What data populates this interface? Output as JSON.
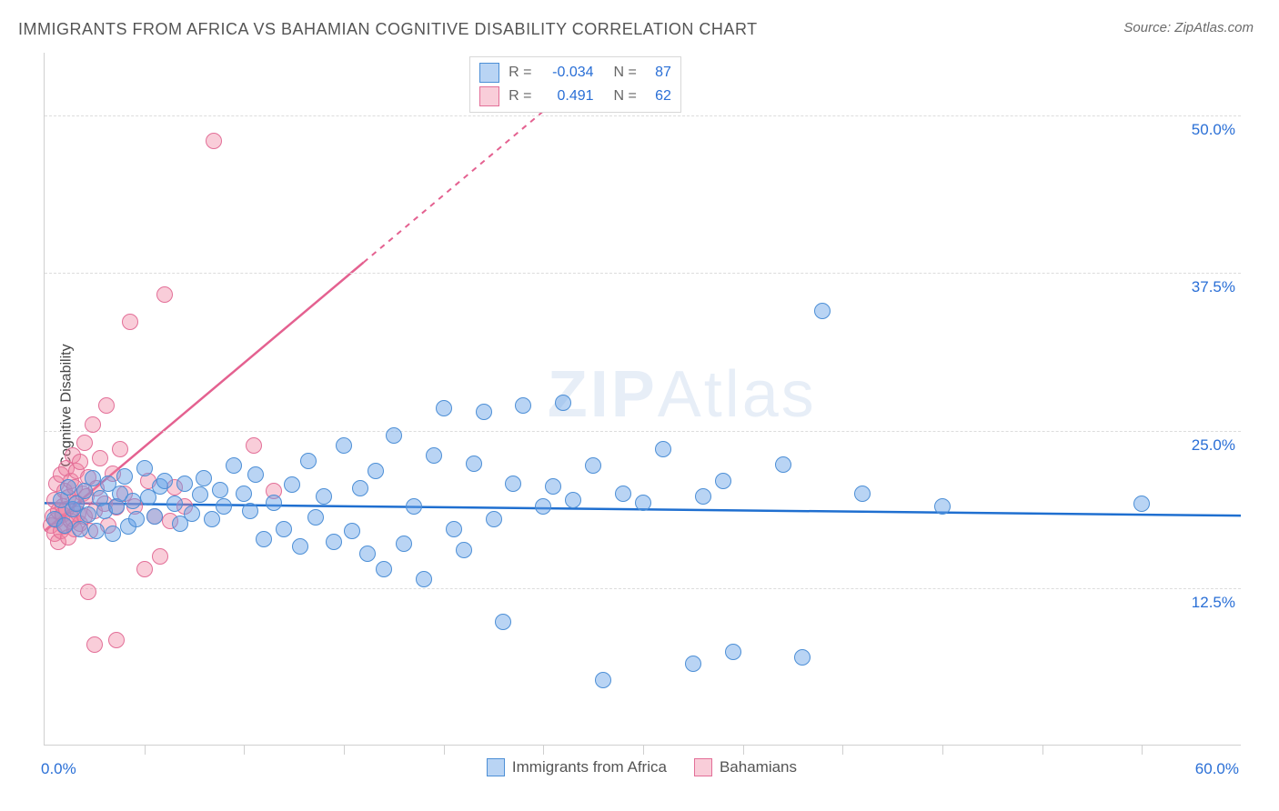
{
  "title": "IMMIGRANTS FROM AFRICA VS BAHAMIAN COGNITIVE DISABILITY CORRELATION CHART",
  "source_prefix": "Source: ",
  "source_name": "ZipAtlas.com",
  "ylabel": "Cognitive Disability",
  "watermark_bold": "ZIP",
  "watermark_rest": "Atlas",
  "colors": {
    "series_a_fill": "rgba(100,160,230,0.45)",
    "series_a_stroke": "#4d8fd6",
    "series_a_line": "#1f6fd0",
    "series_b_fill": "rgba(240,130,160,0.40)",
    "series_b_stroke": "#e36f98",
    "series_b_line": "#e46190",
    "axis_label": "#2a6fd6",
    "grid": "#dcdcdc",
    "text": "#555555",
    "watermark": "rgba(120,160,210,0.18)"
  },
  "chart": {
    "type": "scatter",
    "xlim": [
      0,
      60
    ],
    "ylim": [
      0,
      55
    ],
    "yticks": [
      {
        "v": 12.5,
        "label": "12.5%"
      },
      {
        "v": 25.0,
        "label": "25.0%"
      },
      {
        "v": 37.5,
        "label": "37.5%"
      },
      {
        "v": 50.0,
        "label": "50.0%"
      }
    ],
    "xticks_major": [
      0,
      60
    ],
    "xtick_labels": {
      "0": "0.0%",
      "60": "60.0%"
    },
    "xticks_minor": [
      5,
      10,
      15,
      20,
      25,
      30,
      35,
      40,
      45,
      50,
      55
    ],
    "marker_radius": 9,
    "marker_stroke_width": 1.5,
    "trend_width": 2.5,
    "trend_dash_width": 2
  },
  "legend_top": {
    "rows": [
      {
        "swatch": "a",
        "r_label": "R =",
        "r_value": "-0.034",
        "n_label": "N =",
        "n_value": "87"
      },
      {
        "swatch": "b",
        "r_label": "R =",
        "r_value": "0.491",
        "n_label": "N =",
        "n_value": "62"
      }
    ]
  },
  "legend_bottom": {
    "items": [
      {
        "swatch": "a",
        "label": "Immigrants from Africa"
      },
      {
        "swatch": "b",
        "label": "Bahamians"
      }
    ]
  },
  "series": {
    "a": {
      "trend": {
        "x1": 0,
        "y1": 19.2,
        "x2": 60,
        "y2": 18.2,
        "dashed_from_x": null
      },
      "points": [
        [
          0.5,
          18
        ],
        [
          0.8,
          19.5
        ],
        [
          1.0,
          17.5
        ],
        [
          1.2,
          20.5
        ],
        [
          1.4,
          18.8
        ],
        [
          1.6,
          19.2
        ],
        [
          1.8,
          17.2
        ],
        [
          2.0,
          20.2
        ],
        [
          2.2,
          18.3
        ],
        [
          2.4,
          21.2
        ],
        [
          2.6,
          17.0
        ],
        [
          2.8,
          19.6
        ],
        [
          3.0,
          18.6
        ],
        [
          3.2,
          20.8
        ],
        [
          3.4,
          16.8
        ],
        [
          3.6,
          19.0
        ],
        [
          3.8,
          20.0
        ],
        [
          4.0,
          21.4
        ],
        [
          4.2,
          17.4
        ],
        [
          4.4,
          19.4
        ],
        [
          4.6,
          18.0
        ],
        [
          5.0,
          22.0
        ],
        [
          5.2,
          19.7
        ],
        [
          5.5,
          18.2
        ],
        [
          5.8,
          20.6
        ],
        [
          6.0,
          21.0
        ],
        [
          6.5,
          19.2
        ],
        [
          6.8,
          17.6
        ],
        [
          7.0,
          20.8
        ],
        [
          7.4,
          18.4
        ],
        [
          7.8,
          19.9
        ],
        [
          8.0,
          21.2
        ],
        [
          8.4,
          18.0
        ],
        [
          8.8,
          20.3
        ],
        [
          9.0,
          19.0
        ],
        [
          9.5,
          22.2
        ],
        [
          10.0,
          20.0
        ],
        [
          10.3,
          18.6
        ],
        [
          10.6,
          21.5
        ],
        [
          11.0,
          16.4
        ],
        [
          11.5,
          19.3
        ],
        [
          12.0,
          17.2
        ],
        [
          12.4,
          20.7
        ],
        [
          12.8,
          15.8
        ],
        [
          13.2,
          22.6
        ],
        [
          13.6,
          18.1
        ],
        [
          14.0,
          19.8
        ],
        [
          14.5,
          16.2
        ],
        [
          15.0,
          23.8
        ],
        [
          15.4,
          17.0
        ],
        [
          15.8,
          20.4
        ],
        [
          16.2,
          15.2
        ],
        [
          16.6,
          21.8
        ],
        [
          17.0,
          14.0
        ],
        [
          17.5,
          24.6
        ],
        [
          18.0,
          16.0
        ],
        [
          18.5,
          19.0
        ],
        [
          19.0,
          13.2
        ],
        [
          19.5,
          23.0
        ],
        [
          20.0,
          26.8
        ],
        [
          20.5,
          17.2
        ],
        [
          21.0,
          15.5
        ],
        [
          21.5,
          22.4
        ],
        [
          22.0,
          26.5
        ],
        [
          22.5,
          18.0
        ],
        [
          23.0,
          9.8
        ],
        [
          23.5,
          20.8
        ],
        [
          24.0,
          27.0
        ],
        [
          25.0,
          19.0
        ],
        [
          25.5,
          20.6
        ],
        [
          26.0,
          27.2
        ],
        [
          26.5,
          19.5
        ],
        [
          27.5,
          22.2
        ],
        [
          28.0,
          5.2
        ],
        [
          29.0,
          20.0
        ],
        [
          30.0,
          19.3
        ],
        [
          31.0,
          23.5
        ],
        [
          32.5,
          6.5
        ],
        [
          33.0,
          19.8
        ],
        [
          34.0,
          21.0
        ],
        [
          34.5,
          7.4
        ],
        [
          37.0,
          22.3
        ],
        [
          38.0,
          7.0
        ],
        [
          39.0,
          34.5
        ],
        [
          41.0,
          20.0
        ],
        [
          45.0,
          19.0
        ],
        [
          55.0,
          19.2
        ]
      ]
    },
    "b": {
      "trend": {
        "x1": 0,
        "y1": 17.0,
        "x2": 27,
        "y2": 53.0,
        "solid_to_x": 16
      },
      "points": [
        [
          0.3,
          17.5
        ],
        [
          0.4,
          18.2
        ],
        [
          0.5,
          16.8
        ],
        [
          0.5,
          19.5
        ],
        [
          0.6,
          17.9
        ],
        [
          0.6,
          20.8
        ],
        [
          0.7,
          18.6
        ],
        [
          0.7,
          16.2
        ],
        [
          0.8,
          21.5
        ],
        [
          0.8,
          17.0
        ],
        [
          0.9,
          19.0
        ],
        [
          0.9,
          18.3
        ],
        [
          1.0,
          20.2
        ],
        [
          1.0,
          17.4
        ],
        [
          1.1,
          22.0
        ],
        [
          1.1,
          18.8
        ],
        [
          1.2,
          16.5
        ],
        [
          1.2,
          19.7
        ],
        [
          1.3,
          21.0
        ],
        [
          1.3,
          17.8
        ],
        [
          1.4,
          23.0
        ],
        [
          1.4,
          18.0
        ],
        [
          1.5,
          20.5
        ],
        [
          1.5,
          17.2
        ],
        [
          1.6,
          19.3
        ],
        [
          1.6,
          21.8
        ],
        [
          1.7,
          18.4
        ],
        [
          1.8,
          22.5
        ],
        [
          1.8,
          17.6
        ],
        [
          1.9,
          20.0
        ],
        [
          2.0,
          24.0
        ],
        [
          2.0,
          18.2
        ],
        [
          2.1,
          19.8
        ],
        [
          2.2,
          21.3
        ],
        [
          2.3,
          17.0
        ],
        [
          2.4,
          25.5
        ],
        [
          2.5,
          18.6
        ],
        [
          2.6,
          20.4
        ],
        [
          2.8,
          22.8
        ],
        [
          3.0,
          19.2
        ],
        [
          3.1,
          27.0
        ],
        [
          3.2,
          17.5
        ],
        [
          3.4,
          21.6
        ],
        [
          3.6,
          18.9
        ],
        [
          3.8,
          23.5
        ],
        [
          4.0,
          20.0
        ],
        [
          4.3,
          33.6
        ],
        [
          4.5,
          19.0
        ],
        [
          5.0,
          14.0
        ],
        [
          5.2,
          21.0
        ],
        [
          5.5,
          18.2
        ],
        [
          5.8,
          15.0
        ],
        [
          6.0,
          35.8
        ],
        [
          6.3,
          17.8
        ],
        [
          6.5,
          20.5
        ],
        [
          7.0,
          19.0
        ],
        [
          2.2,
          12.2
        ],
        [
          2.5,
          8.0
        ],
        [
          3.6,
          8.4
        ],
        [
          8.5,
          48.0
        ],
        [
          10.5,
          23.8
        ],
        [
          11.5,
          20.2
        ]
      ]
    }
  }
}
